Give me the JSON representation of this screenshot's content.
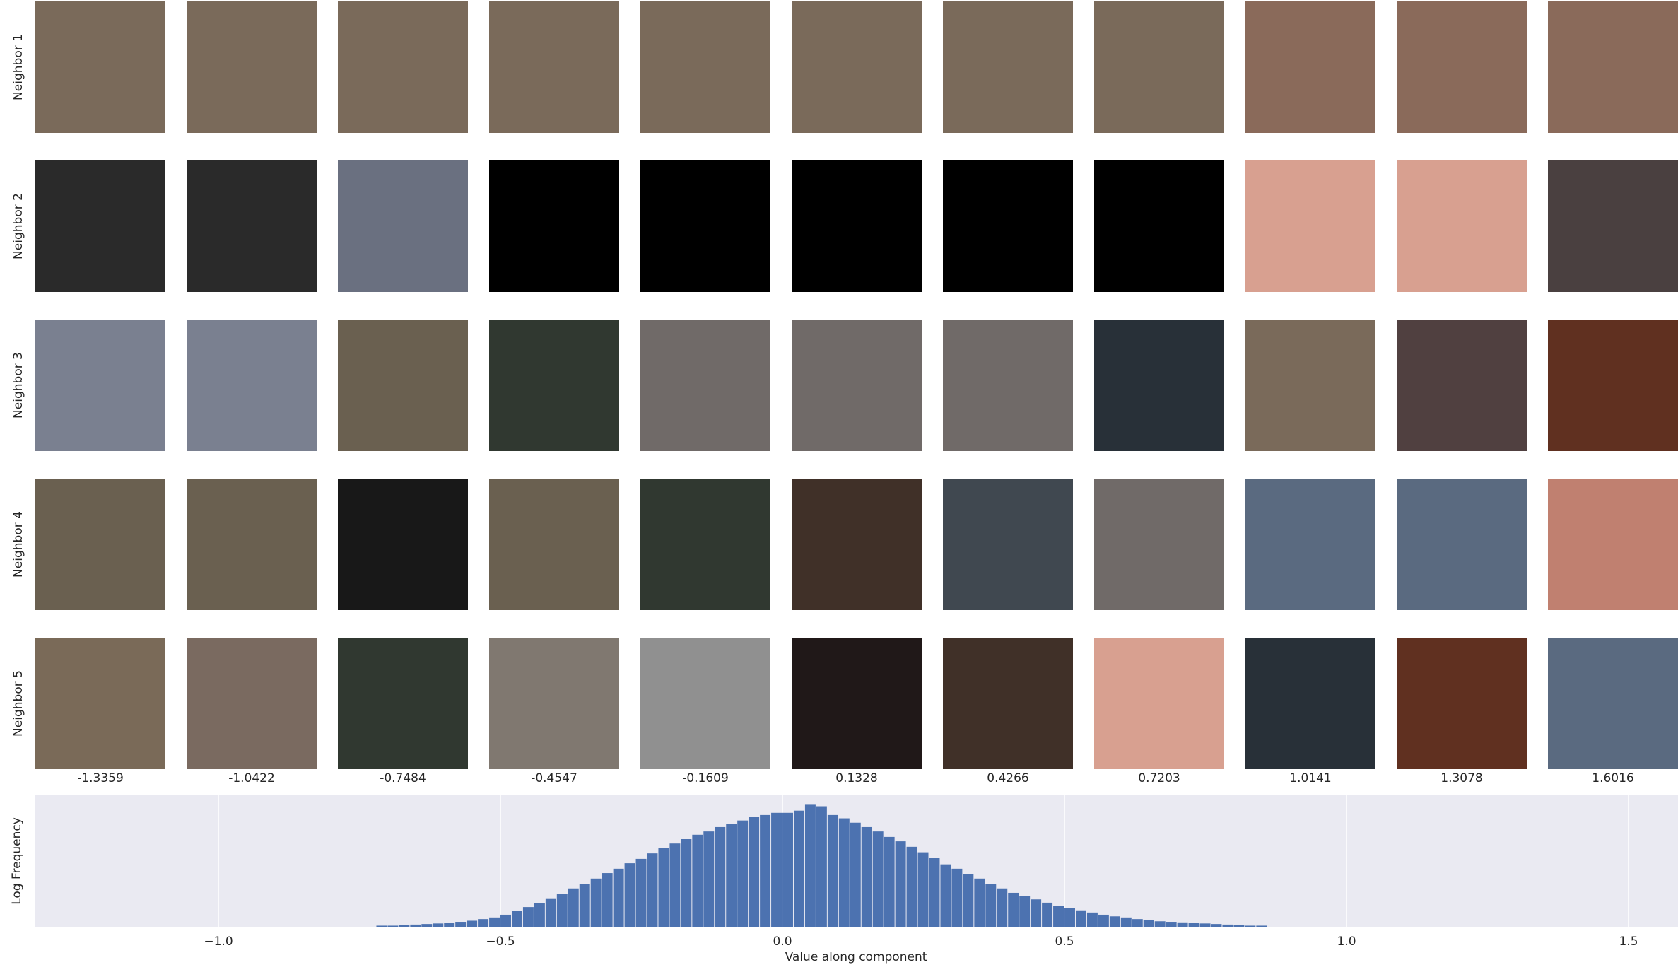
{
  "chart_data": {
    "type": "histogram",
    "row_labels": [
      "Neighbor 1",
      "Neighbor 2",
      "Neighbor 3",
      "Neighbor 4",
      "Neighbor 5"
    ],
    "columns": [
      -1.3359,
      -1.0422,
      -0.7484,
      -0.4547,
      -0.1609,
      0.1328,
      0.4266,
      0.7203,
      1.0141,
      1.3078,
      1.6016
    ],
    "xlabel": "Value along component",
    "ylabel": "Log Frequency",
    "color": "#4c72b0",
    "grid": true,
    "xlim": [
      -1.3246,
      1.5877
    ],
    "ylim": [
      0,
      120
    ],
    "xticks": [
      {
        "value": -1,
        "label": "−1.0"
      },
      {
        "value": -0.5,
        "label": "−0.5"
      },
      {
        "value": 0,
        "label": "0.0"
      },
      0.5,
      {
        "value": 1,
        "label": "1.0"
      },
      1.5
    ],
    "bins": [
      -0.72,
      -0.7,
      -0.68,
      -0.66,
      -0.64,
      -0.62,
      -0.6,
      -0.58,
      -0.56,
      -0.54,
      -0.52,
      -0.5,
      -0.48,
      -0.46,
      -0.44,
      -0.42,
      -0.4,
      -0.38,
      -0.36,
      -0.34,
      -0.32,
      -0.3,
      -0.28,
      -0.26,
      -0.24,
      -0.22,
      -0.2,
      -0.18,
      -0.16,
      -0.14,
      -0.12,
      -0.1,
      -0.08,
      -0.06,
      -0.04,
      -0.02,
      0,
      0.02,
      0.04,
      0.06,
      0.08,
      0.1,
      0.12,
      0.14,
      0.16,
      0.18,
      0.2,
      0.22,
      0.24,
      0.26,
      0.28,
      0.3,
      0.32,
      0.34,
      0.36,
      0.38,
      0.4,
      0.42,
      0.44,
      0.46,
      0.48,
      0.5,
      0.52,
      0.54,
      0.56,
      0.58,
      0.6,
      0.62,
      0.64,
      0.66,
      0.68,
      0.7,
      0.72,
      0.74,
      0.76,
      0.78,
      0.8,
      0.82,
      0.84,
      0.86
    ],
    "values": [
      1,
      1,
      1.5,
      2,
      2.5,
      3,
      3.5,
      4.5,
      5.5,
      7,
      8.5,
      11,
      14.5,
      18,
      21.5,
      26,
      30,
      35,
      39,
      44,
      49,
      53,
      58,
      62,
      67,
      72,
      76,
      80,
      84,
      87,
      91,
      94,
      97,
      100,
      102,
      104,
      104,
      106,
      112,
      110,
      102,
      99,
      95,
      91,
      87,
      82,
      78,
      73,
      68,
      63,
      57,
      53,
      48,
      44,
      39,
      35,
      31,
      28,
      25,
      22,
      19,
      17,
      15,
      13,
      11,
      9.5,
      8.5,
      7,
      6,
      5,
      4.5,
      4,
      3.5,
      3,
      2.5,
      2,
      1.5,
      1,
      1
    ]
  }
}
